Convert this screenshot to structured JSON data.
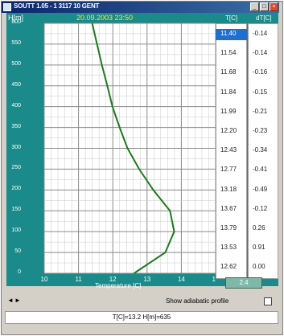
{
  "window": {
    "title": "SOUTT 1.05 - 1 3117 10 GENT",
    "buttons": [
      "_",
      "□",
      "×"
    ]
  },
  "plot": {
    "y_header": "H[m]",
    "date_header": "20.09.2003 23:50",
    "x_axis_label": "Temperature [C]",
    "x_ticks": [
      "10",
      "11",
      "12",
      "13",
      "14",
      "15"
    ],
    "y_ticks": [
      "600",
      "550",
      "500",
      "450",
      "400",
      "350",
      "300",
      "250",
      "200",
      "150",
      "100",
      "50",
      "0"
    ]
  },
  "chart_data": {
    "type": "line",
    "xlabel": "Temperature [C]",
    "ylabel": "H[m]",
    "xlim": [
      10,
      15
    ],
    "ylim": [
      0,
      600
    ],
    "grid": true,
    "series": [
      {
        "color": "#1e7a1e",
        "x": [
          12.62,
          13.53,
          13.79,
          13.67,
          13.18,
          12.77,
          12.43,
          12.2,
          11.99,
          11.84,
          11.68,
          11.54,
          11.4
        ],
        "y": [
          0,
          50,
          100,
          150,
          200,
          250,
          300,
          350,
          400,
          450,
          500,
          550,
          600
        ]
      }
    ]
  },
  "table": {
    "headers": [
      "T[C]",
      "dT[C]"
    ],
    "t_values": [
      "11.40",
      "11.54",
      "11.68",
      "11.84",
      "11.99",
      "12.20",
      "12.43",
      "12.77",
      "13.18",
      "13.67",
      "13.79",
      "13.53",
      "12.62"
    ],
    "dt_values": [
      "-0.14",
      "-0.14",
      "-0.16",
      "-0.15",
      "-0.21",
      "-0.23",
      "-0.34",
      "-0.41",
      "-0.49",
      "-0.12",
      "0.26",
      "0.91",
      "0.00"
    ],
    "stepper_value": "2.4"
  },
  "controls": {
    "nav_left": "◄",
    "nav_right": "►",
    "adiabatic_label": "Show adiabatic profile"
  },
  "status": {
    "text": "T[C]=13.2 H[m]=635"
  }
}
